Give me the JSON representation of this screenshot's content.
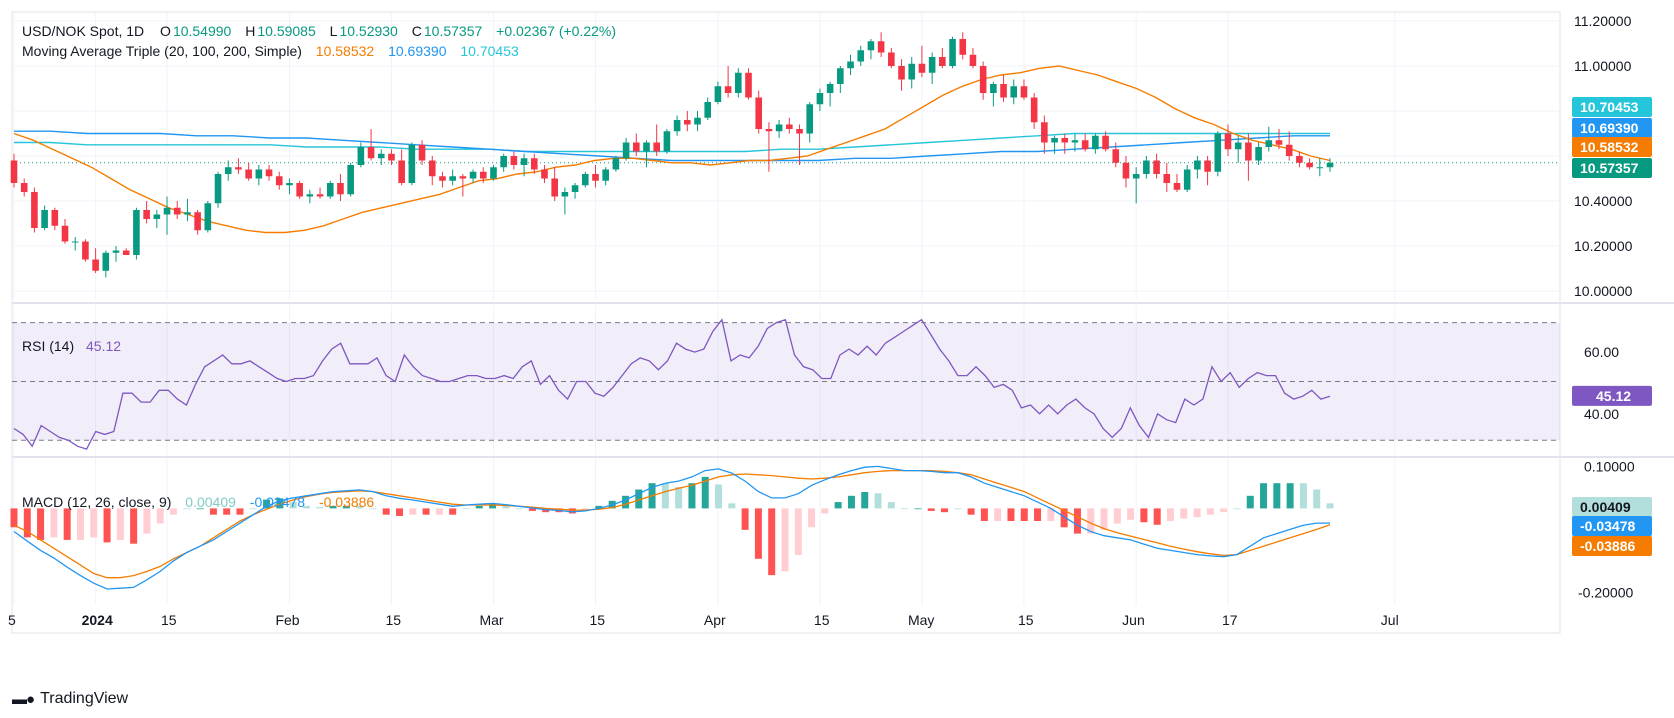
{
  "header": {
    "symbol": "USD/NOK Spot, 1D",
    "ohlc": {
      "o_label": "O",
      "o": "10.54990",
      "h_label": "H",
      "h": "10.59085",
      "l_label": "L",
      "l": "10.52930",
      "c_label": "C",
      "c": "10.57357",
      "change": "+0.02367 (+0.22%)"
    },
    "ma_label": "Moving Average Triple (20, 100, 200, Simple)",
    "ma_values": [
      "10.58532",
      "10.69390",
      "10.70453"
    ],
    "rsi_label": "RSI (14)",
    "rsi_value": "45.12",
    "macd_label": "MACD (12, 26, close, 9)",
    "macd_values": [
      "0.00409",
      "-0.03478",
      "-0.03886"
    ]
  },
  "brand": "TradingView",
  "colors": {
    "up": "#089981",
    "down": "#f23645",
    "ma20": "#f57c00",
    "ma100": "#2196f3",
    "ma200": "#26c6da",
    "rsi": "#7e57c2",
    "macd": "#2196f3",
    "signal": "#f57c00",
    "hist_pos_strong": "#26a69a",
    "hist_pos_weak": "#b2dfdb",
    "hist_neg_strong": "#ff5252",
    "hist_neg_weak": "#ffcdd2"
  },
  "chart_data": {
    "type": "candlestick",
    "x_ticks": [
      "5",
      "2024",
      "15",
      "Feb",
      "15",
      "Mar",
      "15",
      "Apr",
      "15",
      "May",
      "15",
      "Jun",
      "17",
      "Jul"
    ],
    "price_axis": {
      "ticks": [
        "11.20000",
        "11.00000",
        "10.40000",
        "10.20000",
        "10.00000"
      ],
      "ylim": [
        9.96,
        11.24
      ]
    },
    "candles": [
      [
        10.58,
        10.61,
        10.46,
        10.48
      ],
      [
        10.48,
        10.5,
        10.42,
        10.44
      ],
      [
        10.44,
        10.46,
        10.26,
        10.28
      ],
      [
        10.28,
        10.38,
        10.27,
        10.36
      ],
      [
        10.36,
        10.37,
        10.27,
        10.29
      ],
      [
        10.29,
        10.32,
        10.21,
        10.22
      ],
      [
        10.22,
        10.24,
        10.18,
        10.22
      ],
      [
        10.22,
        10.23,
        10.13,
        10.14
      ],
      [
        10.14,
        10.19,
        10.08,
        10.09
      ],
      [
        10.09,
        10.18,
        10.06,
        10.17
      ],
      [
        10.17,
        10.2,
        10.13,
        10.18
      ],
      [
        10.18,
        10.19,
        10.16,
        10.16
      ],
      [
        10.16,
        10.37,
        10.14,
        10.36
      ],
      [
        10.36,
        10.4,
        10.3,
        10.32
      ],
      [
        10.32,
        10.36,
        10.28,
        10.34
      ],
      [
        10.34,
        10.42,
        10.25,
        10.37
      ],
      [
        10.37,
        10.4,
        10.32,
        10.34
      ],
      [
        10.34,
        10.41,
        10.31,
        10.35
      ],
      [
        10.35,
        10.36,
        10.25,
        10.27
      ],
      [
        10.27,
        10.4,
        10.26,
        10.39
      ],
      [
        10.39,
        10.53,
        10.37,
        10.52
      ],
      [
        10.52,
        10.58,
        10.49,
        10.55
      ],
      [
        10.55,
        10.59,
        10.52,
        10.54
      ],
      [
        10.54,
        10.57,
        10.49,
        10.5
      ],
      [
        10.5,
        10.56,
        10.47,
        10.54
      ],
      [
        10.54,
        10.56,
        10.49,
        10.51
      ],
      [
        10.51,
        10.53,
        10.45,
        10.47
      ],
      [
        10.47,
        10.5,
        10.43,
        10.48
      ],
      [
        10.48,
        10.49,
        10.41,
        10.42
      ],
      [
        10.42,
        10.45,
        10.39,
        10.43
      ],
      [
        10.43,
        10.46,
        10.41,
        10.42
      ],
      [
        10.42,
        10.49,
        10.41,
        10.48
      ],
      [
        10.48,
        10.52,
        10.4,
        10.43
      ],
      [
        10.43,
        10.57,
        10.42,
        10.56
      ],
      [
        10.56,
        10.66,
        10.55,
        10.64
      ],
      [
        10.64,
        10.72,
        10.58,
        10.59
      ],
      [
        10.59,
        10.63,
        10.56,
        10.61
      ],
      [
        10.61,
        10.63,
        10.56,
        10.58
      ],
      [
        10.58,
        10.63,
        10.47,
        10.48
      ],
      [
        10.48,
        10.66,
        10.47,
        10.65
      ],
      [
        10.65,
        10.67,
        10.56,
        10.58
      ],
      [
        10.58,
        10.6,
        10.47,
        10.51
      ],
      [
        10.51,
        10.53,
        10.46,
        10.49
      ],
      [
        10.49,
        10.54,
        10.47,
        10.51
      ],
      [
        10.51,
        10.52,
        10.42,
        10.5
      ],
      [
        10.5,
        10.54,
        10.48,
        10.53
      ],
      [
        10.53,
        10.55,
        10.48,
        10.5
      ],
      [
        10.5,
        10.56,
        10.49,
        10.55
      ],
      [
        10.55,
        10.61,
        10.53,
        10.6
      ],
      [
        10.6,
        10.62,
        10.54,
        10.56
      ],
      [
        10.56,
        10.61,
        10.51,
        10.59
      ],
      [
        10.59,
        10.61,
        10.52,
        10.54
      ],
      [
        10.54,
        10.56,
        10.48,
        10.5
      ],
      [
        10.5,
        10.55,
        10.4,
        10.42
      ],
      [
        10.42,
        10.46,
        10.34,
        10.44
      ],
      [
        10.44,
        10.48,
        10.41,
        10.47
      ],
      [
        10.47,
        10.53,
        10.46,
        10.52
      ],
      [
        10.52,
        10.56,
        10.46,
        10.49
      ],
      [
        10.49,
        10.55,
        10.47,
        10.54
      ],
      [
        10.54,
        10.6,
        10.53,
        10.59
      ],
      [
        10.59,
        10.68,
        10.58,
        10.66
      ],
      [
        10.66,
        10.7,
        10.6,
        10.62
      ],
      [
        10.62,
        10.67,
        10.55,
        10.66
      ],
      [
        10.66,
        10.74,
        10.6,
        10.62
      ],
      [
        10.62,
        10.72,
        10.61,
        10.71
      ],
      [
        10.71,
        10.78,
        10.69,
        10.76
      ],
      [
        10.76,
        10.8,
        10.71,
        10.74
      ],
      [
        10.74,
        10.8,
        10.71,
        10.77
      ],
      [
        10.77,
        10.86,
        10.76,
        10.84
      ],
      [
        10.84,
        10.93,
        10.83,
        10.91
      ],
      [
        10.91,
        11.0,
        10.86,
        10.88
      ],
      [
        10.88,
        10.99,
        10.86,
        10.97
      ],
      [
        10.97,
        10.99,
        10.85,
        10.86
      ],
      [
        10.86,
        10.89,
        10.7,
        10.72
      ],
      [
        10.72,
        10.75,
        10.53,
        10.71
      ],
      [
        10.71,
        10.76,
        10.68,
        10.74
      ],
      [
        10.74,
        10.77,
        10.7,
        10.72
      ],
      [
        10.72,
        10.74,
        10.56,
        10.7
      ],
      [
        10.7,
        10.84,
        10.66,
        10.83
      ],
      [
        10.83,
        10.9,
        10.8,
        10.88
      ],
      [
        10.88,
        10.93,
        10.82,
        10.92
      ],
      [
        10.92,
        11.0,
        10.88,
        10.99
      ],
      [
        10.99,
        11.05,
        10.96,
        11.02
      ],
      [
        11.02,
        11.09,
        11.0,
        11.07
      ],
      [
        11.07,
        11.12,
        11.03,
        11.11
      ],
      [
        11.11,
        11.15,
        11.04,
        11.06
      ],
      [
        11.06,
        11.08,
        10.99,
        11.0
      ],
      [
        11.0,
        11.03,
        10.89,
        10.94
      ],
      [
        10.94,
        11.04,
        10.9,
        11.01
      ],
      [
        11.01,
        11.09,
        10.95,
        10.97
      ],
      [
        10.97,
        11.06,
        10.92,
        11.04
      ],
      [
        11.04,
        11.08,
        10.99,
        11.0
      ],
      [
        11.0,
        11.13,
        10.99,
        11.12
      ],
      [
        11.12,
        11.15,
        11.03,
        11.05
      ],
      [
        11.05,
        11.08,
        10.99,
        11.0
      ],
      [
        11.0,
        11.02,
        10.85,
        10.88
      ],
      [
        10.88,
        10.93,
        10.82,
        10.92
      ],
      [
        10.92,
        10.96,
        10.84,
        10.86
      ],
      [
        10.86,
        10.94,
        10.83,
        10.91
      ],
      [
        10.91,
        10.94,
        10.85,
        10.86
      ],
      [
        10.86,
        10.88,
        10.72,
        10.75
      ],
      [
        10.75,
        10.78,
        10.61,
        10.66
      ],
      [
        10.66,
        10.69,
        10.61,
        10.68
      ],
      [
        10.68,
        10.7,
        10.61,
        10.66
      ],
      [
        10.66,
        10.7,
        10.62,
        10.67
      ],
      [
        10.67,
        10.7,
        10.62,
        10.63
      ],
      [
        10.63,
        10.7,
        10.61,
        10.69
      ],
      [
        10.69,
        10.71,
        10.62,
        10.63
      ],
      [
        10.63,
        10.66,
        10.55,
        10.57
      ],
      [
        10.57,
        10.6,
        10.46,
        10.5
      ],
      [
        10.5,
        10.55,
        10.39,
        10.52
      ],
      [
        10.52,
        10.6,
        10.5,
        10.58
      ],
      [
        10.58,
        10.61,
        10.5,
        10.52
      ],
      [
        10.52,
        10.57,
        10.44,
        10.48
      ],
      [
        10.48,
        10.52,
        10.44,
        10.45
      ],
      [
        10.45,
        10.56,
        10.44,
        10.54
      ],
      [
        10.54,
        10.6,
        10.5,
        10.58
      ],
      [
        10.58,
        10.6,
        10.47,
        10.53
      ],
      [
        10.53,
        10.71,
        10.51,
        10.7
      ],
      [
        10.7,
        10.74,
        10.6,
        10.63
      ],
      [
        10.63,
        10.69,
        10.57,
        10.66
      ],
      [
        10.66,
        10.7,
        10.49,
        10.58
      ],
      [
        10.58,
        10.66,
        10.56,
        10.64
      ],
      [
        10.64,
        10.73,
        10.62,
        10.67
      ],
      [
        10.67,
        10.72,
        10.63,
        10.65
      ],
      [
        10.65,
        10.71,
        10.58,
        10.6
      ],
      [
        10.6,
        10.62,
        10.55,
        10.57
      ],
      [
        10.57,
        10.59,
        10.54,
        10.55
      ],
      [
        10.55,
        10.59,
        10.51,
        10.55
      ],
      [
        10.55,
        10.59,
        10.53,
        10.57
      ]
    ],
    "ma20": [
      10.7,
      10.67,
      10.63,
      10.59,
      10.55,
      10.5,
      10.45,
      10.41,
      10.37,
      10.34,
      10.31,
      10.29,
      10.27,
      10.26,
      10.26,
      10.27,
      10.29,
      10.32,
      10.35,
      10.37,
      10.39,
      10.41,
      10.43,
      10.46,
      10.49,
      10.5,
      10.52,
      10.53,
      10.55,
      10.56,
      10.58,
      10.59,
      10.59,
      10.58,
      10.57,
      10.57,
      10.56,
      10.57,
      10.58,
      10.58,
      10.59,
      10.6,
      10.63,
      10.66,
      10.69,
      10.72,
      10.77,
      10.82,
      10.87,
      10.91,
      10.94,
      10.96,
      10.97,
      10.99,
      11.0,
      10.98,
      10.96,
      10.93,
      10.9,
      10.86,
      10.81,
      10.77,
      10.74,
      10.7,
      10.67,
      10.65,
      10.63,
      10.6,
      10.58
    ],
    "ma100": [
      10.71,
      10.71,
      10.7,
      10.7,
      10.7,
      10.69,
      10.69,
      10.68,
      10.68,
      10.67,
      10.66,
      10.65,
      10.64,
      10.63,
      10.62,
      10.61,
      10.6,
      10.59,
      10.58,
      10.58,
      10.58,
      10.58,
      10.58,
      10.59,
      10.59,
      10.6,
      10.61,
      10.62,
      10.62,
      10.63,
      10.64,
      10.65,
      10.66,
      10.67,
      10.68,
      10.69,
      10.69
    ],
    "ma200": [
      10.66,
      10.66,
      10.65,
      10.65,
      10.65,
      10.65,
      10.65,
      10.65,
      10.64,
      10.64,
      10.64,
      10.63,
      10.63,
      10.63,
      10.62,
      10.62,
      10.62,
      10.62,
      10.62,
      10.62,
      10.62,
      10.63,
      10.63,
      10.64,
      10.65,
      10.66,
      10.67,
      10.68,
      10.69,
      10.7,
      10.7,
      10.7,
      10.7,
      10.7,
      10.7,
      10.7,
      10.7
    ],
    "rsi": {
      "ticks": [
        "60.00",
        "45.12",
        "40.00"
      ],
      "bands": [
        30,
        50,
        70
      ],
      "values": [
        34,
        32,
        28,
        35,
        33,
        31,
        30,
        28,
        27,
        33,
        32,
        33,
        46,
        46,
        43,
        43,
        47,
        47,
        44,
        42,
        49,
        55,
        57,
        59,
        56,
        56,
        57,
        55,
        53,
        51,
        50,
        51,
        51,
        52,
        57,
        61,
        63,
        56,
        56,
        56,
        58,
        52,
        50,
        59,
        55,
        52,
        51,
        50,
        50,
        51,
        52,
        52,
        51,
        51,
        52,
        51,
        55,
        57,
        49,
        52,
        47,
        44,
        50,
        50,
        46,
        45,
        48,
        52,
        56,
        58,
        57,
        54,
        57,
        63,
        61,
        60,
        61,
        67,
        71,
        57,
        59,
        58,
        62,
        68,
        70,
        71,
        59,
        55,
        54,
        51,
        51,
        59,
        61,
        59,
        62,
        59,
        63,
        65,
        67,
        69,
        71,
        66,
        61,
        57,
        52,
        52,
        55,
        52,
        48,
        49,
        47,
        41,
        42,
        39,
        42,
        39,
        42,
        44,
        41,
        39,
        34,
        31,
        34,
        41,
        35,
        31,
        39,
        37,
        36,
        44,
        42,
        44,
        55,
        50,
        53,
        48,
        51,
        53,
        52,
        52,
        46,
        44,
        45,
        47,
        44,
        45
      ]
    },
    "macd": {
      "ticks": [
        "0.10000",
        "0.00409",
        "-0.03478",
        "-0.03886",
        "-0.20000"
      ],
      "ylim": [
        -0.23,
        0.12
      ],
      "macd_line": [
        -0.055,
        -0.078,
        -0.1,
        -0.118,
        -0.14,
        -0.16,
        -0.178,
        -0.192,
        -0.19,
        -0.188,
        -0.17,
        -0.15,
        -0.125,
        -0.105,
        -0.09,
        -0.075,
        -0.055,
        -0.035,
        -0.015,
        0.005,
        0.018,
        0.025,
        0.03,
        0.035,
        0.04,
        0.042,
        0.044,
        0.04,
        0.03,
        0.024,
        0.02,
        0.015,
        0.01,
        0.005,
        0.008,
        0.01,
        0.012,
        0.009,
        0.005,
        0.001,
        -0.003,
        -0.005,
        -0.008,
        -0.006,
        0.0,
        0.008,
        0.02,
        0.035,
        0.05,
        0.06,
        0.065,
        0.075,
        0.09,
        0.094,
        0.084,
        0.065,
        0.04,
        0.025,
        0.025,
        0.035,
        0.055,
        0.068,
        0.08,
        0.09,
        0.098,
        0.1,
        0.095,
        0.09,
        0.09,
        0.088,
        0.085,
        0.085,
        0.075,
        0.06,
        0.05,
        0.04,
        0.03,
        0.015,
        0.0,
        -0.02,
        -0.04,
        -0.055,
        -0.065,
        -0.07,
        -0.075,
        -0.085,
        -0.095,
        -0.1,
        -0.105,
        -0.11,
        -0.113,
        -0.115,
        -0.11,
        -0.09,
        -0.07,
        -0.06,
        -0.05,
        -0.04,
        -0.035,
        -0.035
      ],
      "signal_line": [
        -0.04,
        -0.055,
        -0.075,
        -0.095,
        -0.115,
        -0.135,
        -0.155,
        -0.165,
        -0.165,
        -0.16,
        -0.15,
        -0.138,
        -0.12,
        -0.105,
        -0.09,
        -0.07,
        -0.05,
        -0.03,
        -0.015,
        -0.002,
        0.01,
        0.02,
        0.028,
        0.034,
        0.038,
        0.04,
        0.042,
        0.04,
        0.035,
        0.03,
        0.025,
        0.02,
        0.015,
        0.01,
        0.008,
        0.008,
        0.008,
        0.007,
        0.005,
        0.003,
        0.0,
        -0.002,
        -0.004,
        -0.004,
        -0.002,
        0.002,
        0.01,
        0.02,
        0.03,
        0.04,
        0.048,
        0.055,
        0.065,
        0.075,
        0.08,
        0.082,
        0.08,
        0.078,
        0.075,
        0.072,
        0.07,
        0.072,
        0.075,
        0.08,
        0.085,
        0.088,
        0.09,
        0.09,
        0.09,
        0.09,
        0.088,
        0.085,
        0.08,
        0.07,
        0.06,
        0.05,
        0.04,
        0.025,
        0.01,
        -0.005,
        -0.02,
        -0.035,
        -0.048,
        -0.058,
        -0.066,
        -0.074,
        -0.082,
        -0.09,
        -0.097,
        -0.103,
        -0.108,
        -0.112,
        -0.11,
        -0.1,
        -0.09,
        -0.08,
        -0.07,
        -0.06,
        -0.05,
        -0.039
      ]
    }
  }
}
